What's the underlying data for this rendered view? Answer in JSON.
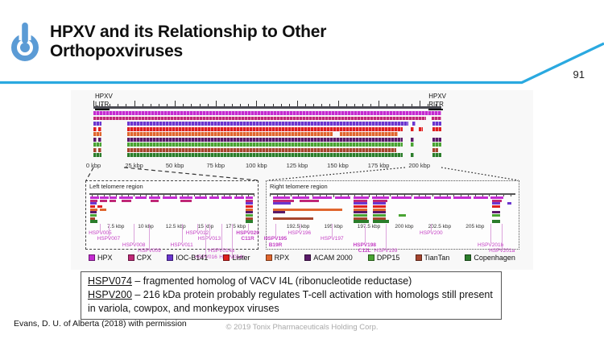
{
  "slide": {
    "title_line1": "HPXV and its Relationship to Other",
    "title_line2": "Orthopoxviruses",
    "page_number": "91",
    "footer_left": "Evans, D. U. of Alberta (2018) with permission",
    "footer_center": "© 2019 Tonix Pharmaceuticals Holding Corp.",
    "accent_color": "#2aa9e0",
    "logo_color": "#5b9bd5"
  },
  "figure": {
    "map": {
      "left_label_top": "HPXV",
      "left_label_bottom": "LITR",
      "right_label_top": "HPXV",
      "right_label_bottom": "RITR",
      "domain": [
        0,
        213.5
      ],
      "axis": [
        {
          "t": "0 kbp",
          "k": 0
        },
        {
          "t": "25 kbp",
          "k": 25
        },
        {
          "t": "50 kbp",
          "k": 50
        },
        {
          "t": "75 kbp",
          "k": 75
        },
        {
          "t": "100 kbp",
          "k": 100
        },
        {
          "t": "125 kbp",
          "k": 125
        },
        {
          "t": "150 kbp",
          "k": 150
        },
        {
          "t": "175 kbp",
          "k": 175
        },
        {
          "t": "200 kbp",
          "k": 200
        }
      ],
      "tracks": [
        {
          "name": "HPX",
          "segments": [
            [
              0,
              213.5
            ]
          ]
        },
        {
          "name": "CPX",
          "segments": [
            [
              0,
              204
            ],
            [
              207.5,
              213.5
            ]
          ]
        },
        {
          "name": "IOC-B141",
          "segments": [
            [
              0,
              5
            ],
            [
              21,
              193
            ],
            [
              195.5,
              197.5
            ],
            [
              208,
              213.5
            ]
          ]
        },
        {
          "name": "Lister",
          "segments": [
            [
              0,
              2
            ],
            [
              2.8,
              5
            ],
            [
              21,
              190
            ],
            [
              194.5,
              196.5
            ],
            [
              199.5,
              202
            ],
            [
              208,
              213.5
            ]
          ]
        },
        {
          "name": "RPX",
          "segments": [
            [
              0,
              5
            ],
            [
              21,
              147
            ],
            [
              151,
              187
            ]
          ]
        },
        {
          "name": "ACAM 2000",
          "segments": [
            [
              0,
              2
            ],
            [
              2.8,
              5
            ],
            [
              21,
              190
            ],
            [
              194.5,
              196.5
            ],
            [
              208,
              213.5
            ]
          ]
        },
        {
          "name": "DPP15",
          "segments": [
            [
              0,
              5
            ],
            [
              21,
              190
            ],
            [
              194.5,
              196.5
            ],
            [
              208,
              213.5
            ]
          ]
        },
        {
          "name": "TianTan",
          "segments": [
            [
              0,
              2
            ],
            [
              2.8,
              5
            ],
            [
              21,
              186
            ],
            [
              208,
              211.5
            ]
          ]
        },
        {
          "name": "Copenhagen",
          "segments": [
            [
              0,
              5
            ],
            [
              21,
              190
            ],
            [
              194.5,
              196.5
            ],
            [
              208,
              213.5
            ]
          ]
        }
      ]
    },
    "palette": [
      {
        "label": "HPX",
        "color": "#c42bd1"
      },
      {
        "label": "CPX",
        "color": "#c02877"
      },
      {
        "label": "IOC-B141",
        "color": "#6a36cf"
      },
      {
        "label": "Lister",
        "color": "#df1f1f"
      },
      {
        "label": "RPX",
        "color": "#e0662e"
      },
      {
        "label": "ACAM 2000",
        "color": "#5a1a69"
      },
      {
        "label": "DPP15",
        "color": "#49a433"
      },
      {
        "label": "TianTan",
        "color": "#a6452e"
      },
      {
        "label": "Copenhagen",
        "color": "#2b7d2b"
      }
    ],
    "panels": [
      {
        "title": "Left telomere region",
        "domain": [
          5.3,
          19.0
        ],
        "minor_step": 0.5,
        "axis": [
          {
            "t": "7.5 kbp",
            "k": 7.5
          },
          {
            "t": "10 kbp",
            "k": 10
          },
          {
            "t": "12.5 kbp",
            "k": 12.5
          },
          {
            "t": "15 kbp",
            "k": 15
          },
          {
            "t": "17.5 kbp",
            "k": 17.5
          }
        ],
        "segments": [
          [
            0,
            5.4,
            6.1
          ],
          [
            0,
            6.2,
            6.9
          ],
          [
            0,
            7.0,
            7.6
          ],
          [
            0,
            7.8,
            8.9
          ],
          [
            0,
            9.1,
            10.1
          ],
          [
            0,
            10.3,
            11.2
          ],
          [
            0,
            11.4,
            12.6
          ],
          [
            0,
            12.8,
            13.9
          ],
          [
            0,
            14.1,
            15.1
          ],
          [
            0,
            15.3,
            16.1
          ],
          [
            0,
            16.3,
            17.2
          ],
          [
            0,
            17.4,
            18.2
          ],
          [
            0,
            18.3,
            18.95
          ],
          [
            1,
            5.4,
            6.0
          ],
          [
            1,
            6.2,
            6.8
          ],
          [
            1,
            7.0,
            7.5
          ],
          [
            1,
            8.0,
            8.8
          ],
          [
            1,
            10.4,
            11.1
          ],
          [
            1,
            12.9,
            13.8
          ],
          [
            1,
            18.3,
            18.95
          ],
          [
            2,
            5.4,
            5.9
          ],
          [
            2,
            18.35,
            18.95
          ],
          [
            3,
            5.4,
            5.8
          ],
          [
            3,
            6.0,
            6.4
          ],
          [
            3,
            18.35,
            18.95
          ],
          [
            4,
            5.4,
            6.0
          ],
          [
            4,
            6.15,
            6.7
          ],
          [
            4,
            18.35,
            18.95
          ],
          [
            5,
            5.4,
            5.9
          ],
          [
            5,
            18.35,
            18.95
          ],
          [
            6,
            5.4,
            5.9
          ],
          [
            6,
            18.35,
            18.95
          ],
          [
            7,
            5.4,
            5.8
          ],
          [
            7,
            18.35,
            18.95
          ],
          [
            8,
            5.4,
            6.0
          ],
          [
            8,
            18.35,
            18.95
          ]
        ],
        "genes": [
          {
            "label": "HSPV005",
            "k": 6.2,
            "lvl": 0
          },
          {
            "label": "HSPV007",
            "k": 6.9,
            "lvl": 1
          },
          {
            "label": "HSPV008",
            "k": 9.0,
            "lvl": 2
          },
          {
            "label": "HSPV009",
            "k": 10.3,
            "lvl": 3
          },
          {
            "label": "HSPV011",
            "k": 13.0,
            "lvl": 2
          },
          {
            "label": "HSPV012",
            "k": 14.3,
            "lvl": 0
          },
          {
            "label": "HSPV013",
            "k": 15.3,
            "lvl": 1
          },
          {
            "label": "HSPV014a",
            "k": 16.3,
            "lvl": 3
          },
          {
            "label": "HSPV016",
            "k": 15.0,
            "lvl": 4
          },
          {
            "label": "HSPV014c",
            "k": 17.2,
            "lvl": 4
          },
          {
            "label": "HSPV020\nC11R",
            "k": 18.5,
            "lvl": 0,
            "bold": true
          }
        ]
      },
      {
        "title": "Right telomere region",
        "domain": [
          190.5,
          207.8
        ],
        "minor_step": 0.5,
        "axis": [
          {
            "t": "192.5 kbp",
            "k": 192.5
          },
          {
            "t": "195 kbp",
            "k": 195
          },
          {
            "t": "197.5 kbp",
            "k": 197.5
          },
          {
            "t": "200 kbp",
            "k": 200
          },
          {
            "t": "202.5 kbp",
            "k": 202.5
          },
          {
            "t": "205 kbp",
            "k": 205
          }
        ],
        "segments": [
          [
            0,
            190.7,
            191.9
          ],
          [
            0,
            192.1,
            193.3
          ],
          [
            0,
            193.5,
            194.9
          ],
          [
            0,
            195.1,
            196.2
          ],
          [
            0,
            196.4,
            197.5
          ],
          [
            0,
            197.7,
            198.9
          ],
          [
            0,
            199.1,
            200.5
          ],
          [
            0,
            200.7,
            201.9
          ],
          [
            0,
            202.1,
            203.3
          ],
          [
            0,
            203.5,
            204.7
          ],
          [
            0,
            204.9,
            205.9
          ],
          [
            0,
            206.1,
            207.0
          ],
          [
            1,
            190.7,
            192.2
          ],
          [
            1,
            192.6,
            194.0
          ],
          [
            1,
            196.4,
            197.4
          ],
          [
            1,
            197.8,
            198.8
          ],
          [
            1,
            206.2,
            206.9
          ],
          [
            2,
            190.7,
            192.0
          ],
          [
            2,
            196.4,
            197.4
          ],
          [
            2,
            197.8,
            198.7
          ],
          [
            2,
            206.2,
            206.8
          ],
          [
            2,
            207.3,
            207.6
          ],
          [
            3,
            196.4,
            197.4
          ],
          [
            3,
            197.8,
            198.7
          ],
          [
            3,
            206.2,
            206.8
          ],
          [
            4,
            190.7,
            195.6
          ],
          [
            4,
            196.4,
            197.4
          ],
          [
            4,
            197.8,
            198.7
          ],
          [
            5,
            190.7,
            191.6
          ],
          [
            5,
            196.4,
            197.4
          ],
          [
            5,
            197.8,
            198.7
          ],
          [
            5,
            206.2,
            206.8
          ],
          [
            6,
            196.4,
            197.4
          ],
          [
            6,
            197.8,
            198.7
          ],
          [
            6,
            199.6,
            200.1
          ],
          [
            6,
            206.2,
            206.8
          ],
          [
            7,
            190.7,
            193.6
          ],
          [
            7,
            196.4,
            197.4
          ],
          [
            7,
            197.8,
            198.7
          ],
          [
            8,
            196.4,
            197.5
          ],
          [
            8,
            197.8,
            198.9
          ],
          [
            8,
            206.2,
            206.8
          ]
        ],
        "genes": [
          {
            "label": "HSPV195\nB19R",
            "k": 190.9,
            "lvl": 1,
            "bold": true
          },
          {
            "label": "HSPV196",
            "k": 192.6,
            "lvl": 0
          },
          {
            "label": "HSPV197",
            "k": 194.9,
            "lvl": 1
          },
          {
            "label": "HSPV198\nC12L",
            "k": 197.2,
            "lvl": 2,
            "bold": true
          },
          {
            "label": "HSPV199",
            "k": 198.7,
            "lvl": 3
          },
          {
            "label": "HSPV200",
            "k": 201.9,
            "lvl": 0
          },
          {
            "label": "HSPV201b",
            "k": 206.1,
            "lvl": 2
          },
          {
            "label": "HSPV201a",
            "k": 206.9,
            "lvl": 3
          }
        ]
      }
    ],
    "legend": [
      "HPX",
      "CPX",
      "IOC-B141",
      "Lister",
      "RPX",
      "ACAM 2000",
      "DPP15",
      "TianTan",
      "Copenhagen"
    ]
  },
  "note_box": {
    "line1_term": "HSPV074",
    "line1_rest": " – fragmented homolog of VACV I4L (ribonucleotide reductase)",
    "line2_term": "HSPV200",
    "line2_rest": " – 216 kDa protein probably regulates T-cell activation with homologs still present in variola, cowpox, and monkeypox viruses"
  }
}
